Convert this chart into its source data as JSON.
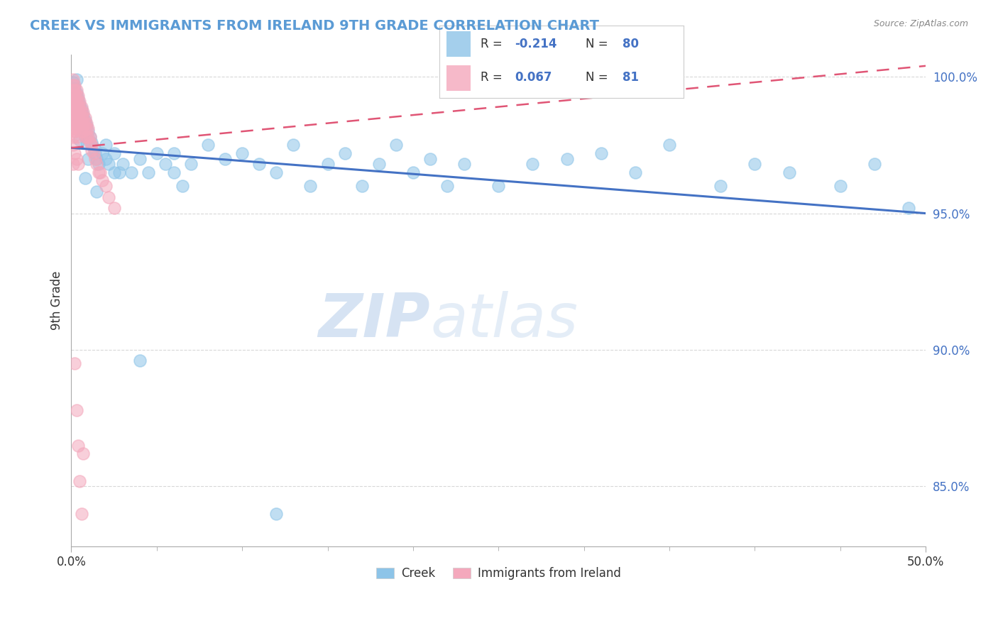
{
  "title": "CREEK VS IMMIGRANTS FROM IRELAND 9TH GRADE CORRELATION CHART",
  "source": "Source: ZipAtlas.com",
  "xlabel_creek": "Creek",
  "xlabel_ireland": "Immigrants from Ireland",
  "ylabel": "9th Grade",
  "xlim": [
    0.0,
    0.5
  ],
  "ylim": [
    0.828,
    1.008
  ],
  "xticks": [
    0.0,
    0.5
  ],
  "xticklabels": [
    "0.0%",
    "50.0%"
  ],
  "ytick_positions": [
    0.85,
    0.9,
    0.95,
    1.0
  ],
  "ytick_labels": [
    "85.0%",
    "90.0%",
    "95.0%",
    "100.0%"
  ],
  "creek_R": -0.214,
  "creek_N": 80,
  "ireland_R": 0.067,
  "ireland_N": 81,
  "creek_color": "#8DC4E8",
  "ireland_color": "#F4A8BC",
  "creek_line_color": "#4472C4",
  "ireland_line_color": "#E05575",
  "watermark_zip": "ZIP",
  "watermark_atlas": "atlas",
  "background_color": "#FFFFFF",
  "grid_color": "#C8C8C8",
  "title_color": "#5B9BD5",
  "source_color": "#888888",
  "ytick_color": "#4472C4",
  "creek_line_y0": 0.974,
  "creek_line_y1": 0.95,
  "ireland_line_y0": 0.974,
  "ireland_line_y1": 1.004,
  "creek_scatter_x": [
    0.001,
    0.001,
    0.001,
    0.002,
    0.002,
    0.002,
    0.003,
    0.003,
    0.003,
    0.004,
    0.004,
    0.005,
    0.005,
    0.006,
    0.006,
    0.007,
    0.007,
    0.008,
    0.008,
    0.009,
    0.009,
    0.01,
    0.011,
    0.012,
    0.013,
    0.014,
    0.015,
    0.016,
    0.018,
    0.02,
    0.022,
    0.025,
    0.028,
    0.03,
    0.035,
    0.04,
    0.045,
    0.05,
    0.055,
    0.06,
    0.065,
    0.07,
    0.08,
    0.09,
    0.1,
    0.11,
    0.12,
    0.13,
    0.14,
    0.15,
    0.16,
    0.17,
    0.18,
    0.19,
    0.2,
    0.21,
    0.22,
    0.23,
    0.25,
    0.27,
    0.29,
    0.31,
    0.33,
    0.35,
    0.38,
    0.4,
    0.42,
    0.45,
    0.47,
    0.49,
    0.003,
    0.005,
    0.008,
    0.01,
    0.015,
    0.02,
    0.025,
    0.04,
    0.06,
    0.12
  ],
  "creek_scatter_y": [
    0.998,
    0.993,
    0.988,
    0.996,
    0.991,
    0.985,
    0.994,
    0.989,
    0.983,
    0.992,
    0.986,
    0.99,
    0.984,
    0.988,
    0.982,
    0.986,
    0.98,
    0.984,
    0.978,
    0.982,
    0.976,
    0.98,
    0.978,
    0.976,
    0.974,
    0.972,
    0.97,
    0.968,
    0.972,
    0.975,
    0.968,
    0.972,
    0.965,
    0.968,
    0.965,
    0.97,
    0.965,
    0.972,
    0.968,
    0.972,
    0.96,
    0.968,
    0.975,
    0.97,
    0.972,
    0.968,
    0.965,
    0.975,
    0.96,
    0.968,
    0.972,
    0.96,
    0.968,
    0.975,
    0.965,
    0.97,
    0.96,
    0.968,
    0.96,
    0.968,
    0.97,
    0.972,
    0.965,
    0.975,
    0.96,
    0.968,
    0.965,
    0.96,
    0.968,
    0.952,
    0.999,
    0.977,
    0.963,
    0.97,
    0.958,
    0.97,
    0.965,
    0.896,
    0.965,
    0.84
  ],
  "ireland_scatter_x": [
    0.001,
    0.001,
    0.001,
    0.001,
    0.001,
    0.001,
    0.001,
    0.001,
    0.001,
    0.001,
    0.001,
    0.002,
    0.002,
    0.002,
    0.002,
    0.002,
    0.002,
    0.002,
    0.002,
    0.002,
    0.003,
    0.003,
    0.003,
    0.003,
    0.003,
    0.003,
    0.003,
    0.004,
    0.004,
    0.004,
    0.004,
    0.004,
    0.004,
    0.005,
    0.005,
    0.005,
    0.005,
    0.006,
    0.006,
    0.006,
    0.006,
    0.006,
    0.007,
    0.007,
    0.007,
    0.007,
    0.008,
    0.008,
    0.008,
    0.008,
    0.009,
    0.009,
    0.009,
    0.01,
    0.01,
    0.011,
    0.011,
    0.012,
    0.012,
    0.013,
    0.014,
    0.015,
    0.016,
    0.017,
    0.018,
    0.02,
    0.022,
    0.025,
    0.002,
    0.003,
    0.004,
    0.005,
    0.006,
    0.007,
    0.001,
    0.001,
    0.002,
    0.002,
    0.003,
    0.003,
    0.004
  ],
  "ireland_scatter_y": [
    0.999,
    0.997,
    0.995,
    0.993,
    0.991,
    0.989,
    0.987,
    0.985,
    0.983,
    0.981,
    0.978,
    0.997,
    0.995,
    0.993,
    0.991,
    0.989,
    0.987,
    0.985,
    0.983,
    0.98,
    0.995,
    0.993,
    0.991,
    0.989,
    0.987,
    0.985,
    0.982,
    0.993,
    0.991,
    0.989,
    0.987,
    0.985,
    0.982,
    0.991,
    0.989,
    0.987,
    0.984,
    0.989,
    0.987,
    0.985,
    0.983,
    0.98,
    0.987,
    0.985,
    0.983,
    0.98,
    0.985,
    0.983,
    0.981,
    0.978,
    0.983,
    0.981,
    0.978,
    0.981,
    0.978,
    0.978,
    0.976,
    0.975,
    0.973,
    0.972,
    0.97,
    0.968,
    0.965,
    0.965,
    0.962,
    0.96,
    0.956,
    0.952,
    0.895,
    0.878,
    0.865,
    0.852,
    0.84,
    0.862,
    0.975,
    0.968,
    0.98,
    0.972,
    0.978,
    0.97,
    0.968
  ]
}
